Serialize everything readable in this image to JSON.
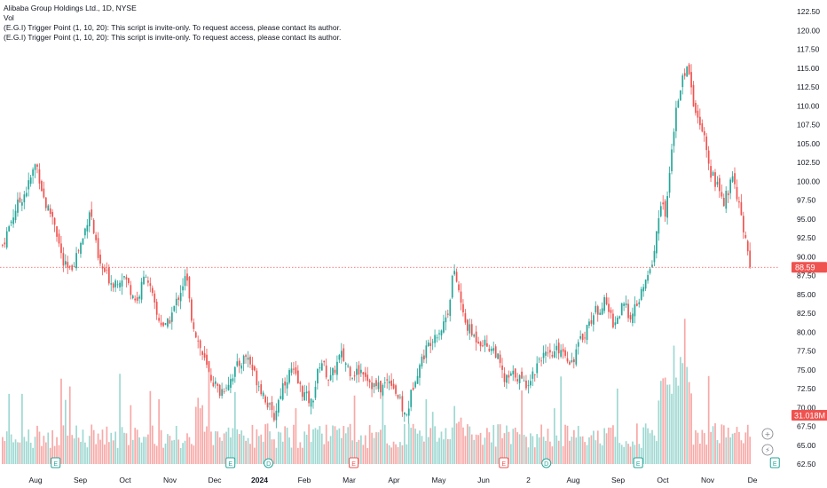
{
  "legend": {
    "title": "Alibaba Group Holdings Ltd., 1D, NYSE",
    "vol": "Vol",
    "indicator1": "(E.G.I) Trigger Point  (1, 10, 20): This script is invite-only. To request access, please contact its author.",
    "indicator2": "(E.G.I) Trigger Point  (1, 10, 20): This script is invite-only. To request access, please contact its author."
  },
  "colors": {
    "up": "#26a69a",
    "down": "#ef5350",
    "price_line": "#ef5350",
    "volume_up": "#9fd8d2",
    "volume_down": "#f7a9a7"
  },
  "price_badge": "88.59",
  "volume_badge": "31.018M",
  "events": [
    {
      "label": "E",
      "kind": "earnings",
      "month_index": 0.45,
      "color": "#26a69a"
    },
    {
      "label": "E",
      "kind": "earnings",
      "month_index": 4.35,
      "color": "#26a69a"
    },
    {
      "label": "D",
      "kind": "dividend",
      "month_index": 5.2,
      "color": "#26a69a"
    },
    {
      "label": "E",
      "kind": "earnings",
      "month_index": 7.1,
      "color": "#ef5350"
    },
    {
      "label": "E",
      "kind": "earnings",
      "month_index": 10.45,
      "color": "#ef5350"
    },
    {
      "label": "D",
      "kind": "dividend",
      "month_index": 11.4,
      "color": "#26a69a"
    },
    {
      "label": "E",
      "kind": "earnings",
      "month_index": 13.45,
      "color": "#26a69a"
    },
    {
      "label": "E",
      "kind": "earnings",
      "month_index": 16.5,
      "color": "#26a69a"
    }
  ],
  "side_icons": [
    "plus-icon",
    "lightning-icon"
  ],
  "chart_data": {
    "type": "candlestick",
    "title": "Alibaba Group Holdings Ltd., 1D, NYSE",
    "y_ticks": [
      "122.50",
      "120.00",
      "117.50",
      "115.00",
      "112.50",
      "110.00",
      "107.50",
      "105.00",
      "102.50",
      "100.00",
      "97.50",
      "95.00",
      "92.50",
      "90.00",
      "87.50",
      "85.00",
      "82.50",
      "80.00",
      "77.50",
      "75.00",
      "72.50",
      "70.00",
      "67.50",
      "65.00",
      "62.50"
    ],
    "ylim": [
      62.5,
      122.5
    ],
    "x_ticks": [
      "Aug",
      "Sep",
      "Oct",
      "Nov",
      "Dec",
      "2024",
      "Feb",
      "Mar",
      "Apr",
      "May",
      "Jun",
      "2",
      "Aug",
      "Sep",
      "Oct",
      "Nov",
      "De"
    ],
    "last_price": 88.59,
    "last_volume": "31.018M",
    "close_path": [
      [
        0.0,
        91.5
      ],
      [
        0.3,
        96.5
      ],
      [
        0.55,
        99.0
      ],
      [
        0.75,
        102.5
      ],
      [
        0.95,
        97.0
      ],
      [
        1.15,
        95.0
      ],
      [
        1.35,
        89.0
      ],
      [
        1.5,
        88.0
      ],
      [
        1.8,
        92.5
      ],
      [
        1.95,
        96.5
      ],
      [
        2.15,
        89.0
      ],
      [
        2.45,
        86.5
      ],
      [
        2.7,
        87.5
      ],
      [
        3.0,
        84.0
      ],
      [
        3.2,
        88.0
      ],
      [
        3.45,
        82.0
      ],
      [
        3.65,
        80.5
      ],
      [
        3.85,
        83.5
      ],
      [
        4.0,
        86.0
      ],
      [
        4.1,
        87.5
      ],
      [
        4.2,
        82.5
      ],
      [
        4.35,
        79.0
      ],
      [
        4.6,
        74.5
      ],
      [
        4.85,
        72.0
      ],
      [
        5.05,
        73.5
      ],
      [
        5.25,
        75.5
      ],
      [
        5.45,
        77.0
      ],
      [
        5.65,
        74.0
      ],
      [
        5.85,
        71.5
      ],
      [
        6.05,
        68.5
      ],
      [
        6.25,
        73.0
      ],
      [
        6.45,
        75.0
      ],
      [
        6.7,
        72.0
      ],
      [
        6.9,
        70.5
      ],
      [
        7.1,
        76.5
      ],
      [
        7.3,
        73.5
      ],
      [
        7.55,
        77.0
      ],
      [
        7.8,
        74.5
      ],
      [
        8.05,
        75.0
      ],
      [
        8.25,
        73.0
      ],
      [
        8.45,
        72.5
      ],
      [
        8.65,
        74.0
      ],
      [
        8.85,
        71.0
      ],
      [
        9.0,
        68.5
      ],
      [
        9.2,
        74.0
      ],
      [
        9.4,
        77.0
      ],
      [
        9.6,
        79.5
      ],
      [
        9.8,
        80.5
      ],
      [
        9.95,
        83.0
      ],
      [
        10.05,
        88.0
      ],
      [
        10.15,
        86.5
      ],
      [
        10.3,
        81.5
      ],
      [
        10.5,
        79.5
      ],
      [
        10.75,
        78.5
      ],
      [
        11.0,
        77.5
      ],
      [
        11.2,
        73.5
      ],
      [
        11.45,
        74.5
      ],
      [
        11.65,
        73.0
      ],
      [
        11.85,
        74.5
      ],
      [
        12.0,
        77.0
      ],
      [
        12.2,
        76.5
      ],
      [
        12.45,
        78.0
      ],
      [
        12.7,
        76.0
      ],
      [
        12.95,
        79.5
      ],
      [
        13.2,
        82.5
      ],
      [
        13.45,
        84.0
      ],
      [
        13.65,
        81.0
      ],
      [
        13.85,
        83.5
      ],
      [
        14.05,
        82.0
      ],
      [
        14.25,
        85.0
      ],
      [
        14.45,
        88.0
      ],
      [
        14.55,
        91.0
      ],
      [
        14.7,
        97.5
      ],
      [
        14.8,
        95.0
      ],
      [
        14.95,
        106.0
      ],
      [
        15.1,
        112.0
      ],
      [
        15.3,
        116.0
      ],
      [
        15.45,
        109.0
      ],
      [
        15.65,
        107.0
      ],
      [
        15.8,
        101.0
      ],
      [
        15.95,
        99.5
      ],
      [
        16.1,
        97.0
      ],
      [
        16.3,
        101.0
      ],
      [
        16.45,
        96.5
      ],
      [
        16.55,
        93.0
      ],
      [
        16.62,
        90.5
      ],
      [
        16.68,
        88.59
      ]
    ]
  }
}
